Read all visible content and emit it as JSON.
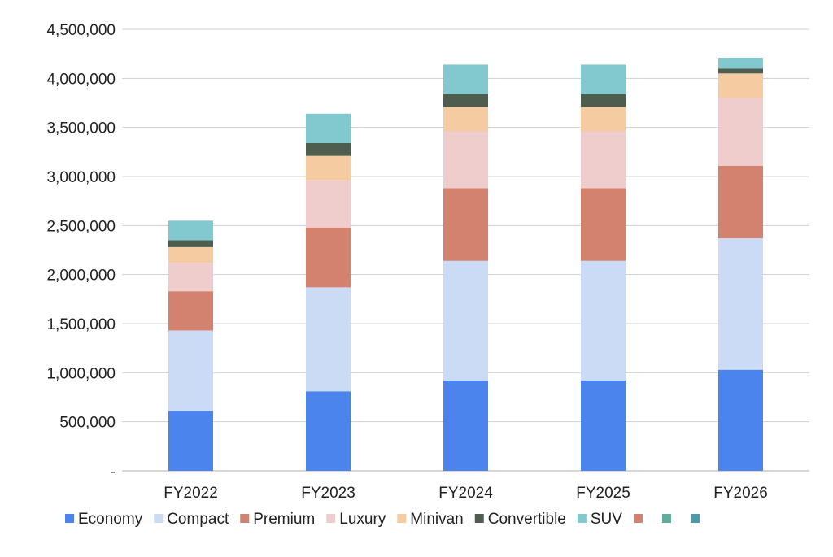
{
  "chart_data": {
    "type": "bar",
    "stacked": true,
    "categories": [
      "FY2022",
      "FY2023",
      "FY2024",
      "FY2025",
      "FY2026"
    ],
    "ylim": [
      0,
      4500000
    ],
    "yticks": [
      0,
      500000,
      1000000,
      1500000,
      2000000,
      2500000,
      3000000,
      3500000,
      4000000,
      4500000
    ],
    "ytick_labels": [
      "-",
      "500,000",
      "1,000,000",
      "1,500,000",
      "2,000,000",
      "2,500,000",
      "3,000,000",
      "3,500,000",
      "4,000,000",
      "4,500,000"
    ],
    "grid": true,
    "legend_position": "bottom",
    "series": [
      {
        "name": "Economy",
        "color": "#4A84EC",
        "values": [
          610000,
          810000,
          920000,
          920000,
          1030000
        ]
      },
      {
        "name": "Compact",
        "color": "#CCDBF5",
        "values": [
          820000,
          1060000,
          1220000,
          1220000,
          1340000
        ]
      },
      {
        "name": "Premium",
        "color": "#D3826F",
        "values": [
          400000,
          610000,
          740000,
          740000,
          740000
        ]
      },
      {
        "name": "Luxury",
        "color": "#F0CDCD",
        "values": [
          290000,
          480000,
          580000,
          580000,
          690000
        ]
      },
      {
        "name": "Minivan",
        "color": "#F5CCA2",
        "values": [
          160000,
          250000,
          250000,
          250000,
          250000
        ]
      },
      {
        "name": "Convertible",
        "color": "#4D5E4F",
        "values": [
          70000,
          130000,
          130000,
          130000,
          50000
        ]
      },
      {
        "name": "SUV",
        "color": "#82C8CF",
        "values": [
          200000,
          300000,
          300000,
          300000,
          110000
        ]
      }
    ],
    "extra_legend_swatches": [
      "#D3826F",
      "#5FAE9C",
      "#4A9AA8"
    ]
  }
}
